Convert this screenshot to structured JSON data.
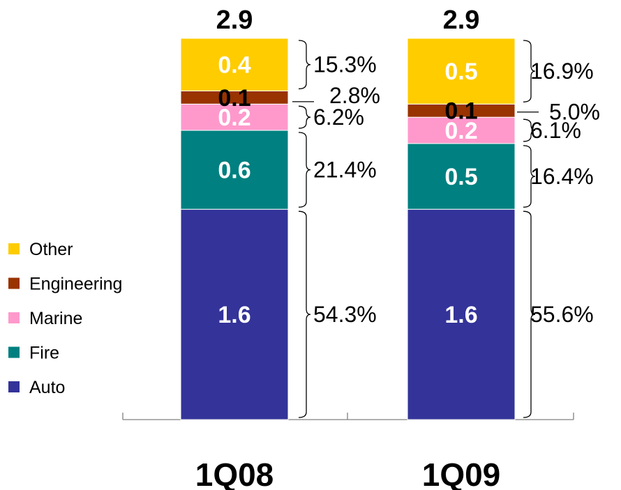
{
  "chart_data": {
    "type": "bar",
    "stacked": true,
    "categories": [
      "1Q08",
      "1Q09"
    ],
    "totals": [
      "2.9",
      "2.9"
    ],
    "series": [
      {
        "name": "Auto",
        "color": "#333399",
        "label_color": "#ffffff",
        "values": [
          1.6,
          1.6
        ],
        "labels": [
          "1.6",
          "1.6"
        ],
        "shares": [
          "54.3%",
          "55.6%"
        ]
      },
      {
        "name": "Fire",
        "color": "#008080",
        "label_color": "#ffffff",
        "values": [
          0.6,
          0.5
        ],
        "labels": [
          "0.6",
          "0.5"
        ],
        "shares": [
          "21.4%",
          "16.4%"
        ]
      },
      {
        "name": "Marine",
        "color": "#ff99cc",
        "label_color": "#ffffff",
        "values": [
          0.2,
          0.2
        ],
        "labels": [
          "0.2",
          "0.2"
        ],
        "shares": [
          "6.2%",
          "6.1%"
        ]
      },
      {
        "name": "Engineering",
        "color": "#993300",
        "label_color": "#000000",
        "values": [
          0.1,
          0.1
        ],
        "labels": [
          "0.1",
          "0.1"
        ],
        "shares": [
          "2.8%",
          "5.0%"
        ]
      },
      {
        "name": "Other",
        "color": "#ffcc00",
        "label_color": "#ffffff",
        "values": [
          0.4,
          0.5
        ],
        "labels": [
          "0.4",
          "0.5"
        ],
        "shares": [
          "15.3%",
          "16.9%"
        ]
      }
    ],
    "legend_position": "left",
    "legend_order": [
      "Other",
      "Engineering",
      "Marine",
      "Fire",
      "Auto"
    ],
    "grid": false
  }
}
